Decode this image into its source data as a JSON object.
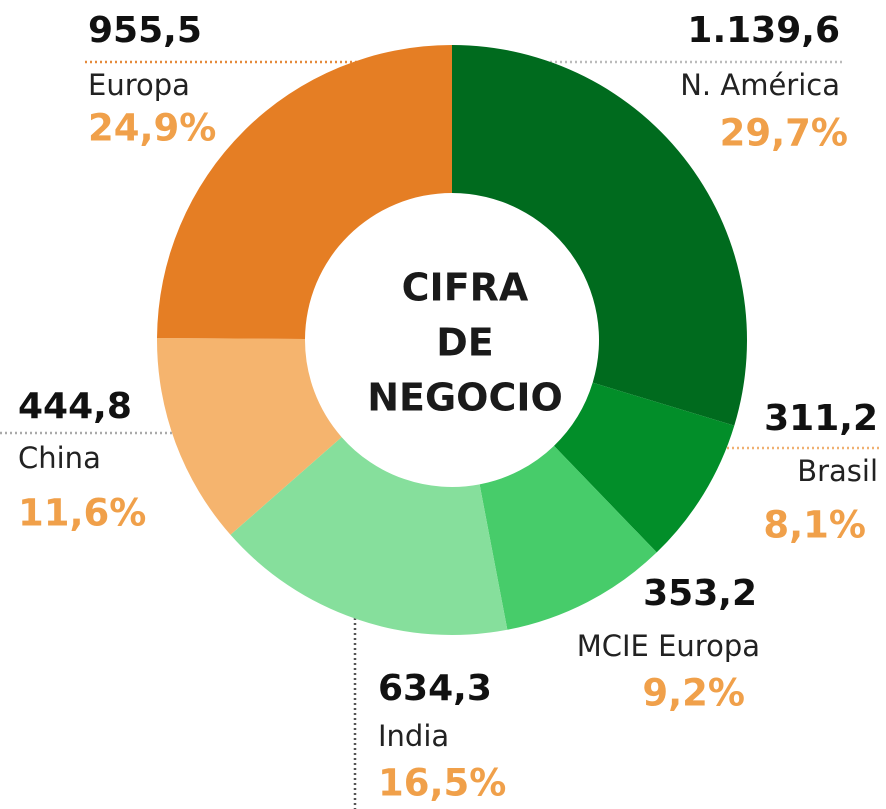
{
  "chart_data": {
    "type": "donut",
    "title_lines": [
      "CIFRA",
      "DE",
      "NEGOCIO"
    ],
    "categories": [
      "N. América",
      "Brasil",
      "MCIE Europa",
      "India",
      "China",
      "Europa"
    ],
    "values": [
      1139.6,
      311.2,
      353.2,
      634.3,
      444.8,
      955.5
    ],
    "value_labels": [
      "1.139,6",
      "311,2",
      "353,2",
      "634,3",
      "444,8",
      "955,5"
    ],
    "percent_labels": [
      "29,7%",
      "8,1%",
      "9,2%",
      "16,5%",
      "11,6%",
      "24,9%"
    ],
    "colors": [
      "#006b1e",
      "#028e29",
      "#47cc6a",
      "#86df9c",
      "#f5b46e",
      "#e57e24"
    ]
  }
}
